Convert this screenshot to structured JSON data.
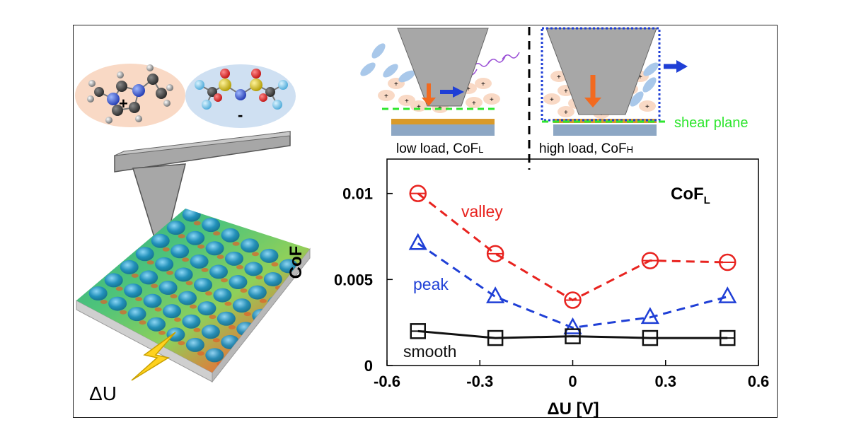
{
  "illustration": {
    "cation_charge": "+",
    "anion_charge": "-",
    "bias_label": "ΔU",
    "low_load_caption": "low load, CoF",
    "low_load_sub": "L",
    "high_load_caption": "high load, CoF",
    "high_load_sub": "H",
    "shear_plane_label": "shear plane",
    "colors": {
      "cation_bg": "#f9d9c5",
      "anion_bg": "#cfe0f2",
      "tip_gray": "#a7a7a7",
      "shear_green": "#2ee62e",
      "arrow_blue": "#1f3fd6",
      "arrow_orange": "#f26a1f",
      "spark_yellow": "#ffd21f"
    }
  },
  "chart_data": {
    "type": "line",
    "title": "CoF",
    "title_sub": "L",
    "xlabel": "ΔU [V]",
    "ylabel": "CoF",
    "xlim": [
      -0.6,
      0.6
    ],
    "ylim": [
      0,
      0.012
    ],
    "x_ticks": [
      -0.6,
      -0.3,
      0,
      0.3,
      0.6
    ],
    "x_tick_labels": [
      "-0.6",
      "-0.3",
      "0",
      "0.3",
      "0.6"
    ],
    "y_ticks": [
      0,
      0.005,
      0.01
    ],
    "y_tick_labels": [
      "0",
      "0.005",
      "0.01"
    ],
    "x": [
      -0.5,
      -0.25,
      0,
      0.25,
      0.5
    ],
    "series": [
      {
        "name": "valley",
        "marker": "circle",
        "line": "dashed",
        "color": "#e8231f",
        "values": [
          0.01,
          0.0065,
          0.0038,
          0.0061,
          0.006
        ]
      },
      {
        "name": "peak",
        "marker": "triangle",
        "line": "dashed",
        "color": "#1f3fd6",
        "values": [
          0.0071,
          0.004,
          0.0022,
          0.0028,
          0.004
        ]
      },
      {
        "name": "smooth",
        "marker": "square",
        "line": "solid",
        "color": "#111111",
        "values": [
          0.002,
          0.0016,
          0.0017,
          0.0016,
          0.0016
        ]
      }
    ]
  }
}
